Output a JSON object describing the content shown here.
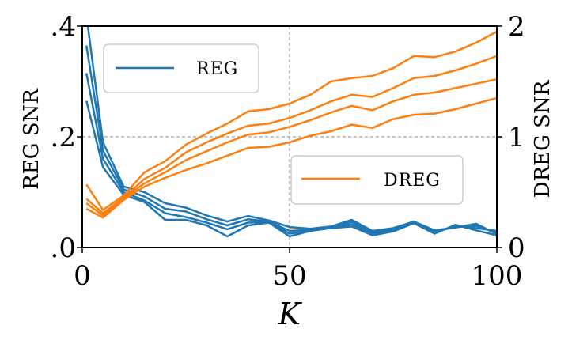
{
  "chart_data": {
    "type": "line",
    "title": "",
    "xlabel": "K",
    "ylabel_left": "REG SNR",
    "ylabel_right": "DREG SNR",
    "xlim": [
      0,
      100
    ],
    "ylim_left": [
      0.0,
      0.4
    ],
    "ylim_right": [
      0,
      2
    ],
    "x_ticks": [
      0,
      50,
      100
    ],
    "x_tick_labels": [
      "0",
      "50",
      "100"
    ],
    "y_left_ticks": [
      0.0,
      0.2,
      0.4
    ],
    "y_left_tick_labels": [
      ".0",
      ".2",
      ".4"
    ],
    "y_right_ticks": [
      0,
      1,
      2
    ],
    "y_right_tick_labels": [
      "0",
      "1",
      "2"
    ],
    "reference_lines": {
      "x": 50,
      "y_left": 0.2
    },
    "colors": {
      "REG": "#1f77b4",
      "DREG": "#ff7f0e",
      "reference": "#888888"
    },
    "legend": [
      {
        "label": "REG",
        "color": "#1f77b4",
        "position": "upper-left"
      },
      {
        "label": "DREG",
        "color": "#ff7f0e",
        "position": "center-right"
      }
    ],
    "x": [
      1,
      5,
      10,
      15,
      20,
      25,
      30,
      35,
      40,
      45,
      50,
      55,
      60,
      65,
      70,
      75,
      80,
      85,
      90,
      95,
      100
    ],
    "series": [
      {
        "name": "REG",
        "axis": "left",
        "values": [
          0.42,
          0.19,
          0.11,
          0.1,
          0.08,
          0.072,
          0.058,
          0.047,
          0.057,
          0.049,
          0.037,
          0.034,
          0.038,
          0.05,
          0.03,
          0.035,
          0.047,
          0.031,
          0.036,
          0.043,
          0.024
        ]
      },
      {
        "name": "REG",
        "axis": "left",
        "values": [
          0.365,
          0.175,
          0.105,
          0.092,
          0.07,
          0.065,
          0.051,
          0.04,
          0.051,
          0.047,
          0.03,
          0.032,
          0.037,
          0.046,
          0.028,
          0.033,
          0.045,
          0.029,
          0.037,
          0.039,
          0.027
        ]
      },
      {
        "name": "REG",
        "axis": "left",
        "values": [
          0.315,
          0.16,
          0.1,
          0.085,
          0.062,
          0.055,
          0.045,
          0.033,
          0.045,
          0.046,
          0.025,
          0.031,
          0.036,
          0.042,
          0.025,
          0.031,
          0.044,
          0.027,
          0.039,
          0.035,
          0.03
        ]
      },
      {
        "name": "REG",
        "axis": "left",
        "values": [
          0.265,
          0.145,
          0.095,
          0.082,
          0.05,
          0.05,
          0.04,
          0.02,
          0.04,
          0.045,
          0.02,
          0.03,
          0.035,
          0.038,
          0.022,
          0.029,
          0.044,
          0.025,
          0.041,
          0.031,
          0.022
        ]
      },
      {
        "name": "DREG",
        "axis": "right",
        "values": [
          0.57,
          0.34,
          0.47,
          0.68,
          0.78,
          0.93,
          1.03,
          1.12,
          1.23,
          1.25,
          1.3,
          1.38,
          1.5,
          1.53,
          1.55,
          1.62,
          1.73,
          1.72,
          1.77,
          1.85,
          1.95
        ]
      },
      {
        "name": "DREG",
        "axis": "right",
        "values": [
          0.44,
          0.31,
          0.45,
          0.62,
          0.72,
          0.86,
          0.95,
          1.03,
          1.1,
          1.12,
          1.17,
          1.24,
          1.32,
          1.38,
          1.36,
          1.44,
          1.53,
          1.55,
          1.6,
          1.66,
          1.73
        ]
      },
      {
        "name": "DREG",
        "axis": "right",
        "values": [
          0.4,
          0.29,
          0.44,
          0.58,
          0.68,
          0.79,
          0.87,
          0.95,
          1.02,
          1.04,
          1.09,
          1.15,
          1.22,
          1.28,
          1.24,
          1.32,
          1.38,
          1.4,
          1.44,
          1.48,
          1.52
        ]
      },
      {
        "name": "DREG",
        "axis": "right",
        "values": [
          0.35,
          0.27,
          0.43,
          0.55,
          0.63,
          0.7,
          0.76,
          0.83,
          0.9,
          0.91,
          0.95,
          1.01,
          1.05,
          1.11,
          1.08,
          1.16,
          1.2,
          1.21,
          1.25,
          1.3,
          1.35
        ]
      }
    ]
  }
}
